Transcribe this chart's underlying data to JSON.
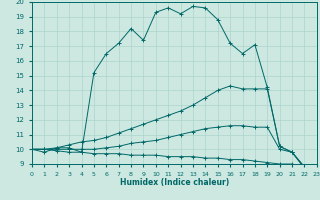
{
  "xlabel": "Humidex (Indice chaleur)",
  "xlim": [
    0,
    23
  ],
  "ylim": [
    9,
    20
  ],
  "xticks": [
    0,
    1,
    2,
    3,
    4,
    5,
    6,
    7,
    8,
    9,
    10,
    11,
    12,
    13,
    14,
    15,
    16,
    17,
    18,
    19,
    20,
    21,
    22,
    23
  ],
  "yticks": [
    9,
    10,
    11,
    12,
    13,
    14,
    15,
    16,
    17,
    18,
    19,
    20
  ],
  "bg_color": "#cce8e0",
  "grid_color": "#aad4cc",
  "line_color": "#006868",
  "series": [
    {
      "x": [
        0,
        1,
        2,
        3,
        4,
        5,
        6,
        7,
        8,
        9,
        10,
        11,
        12,
        13,
        14,
        15,
        16,
        17,
        18,
        19,
        20,
        21,
        22,
        23
      ],
      "y": [
        10.0,
        9.8,
        10.1,
        10.1,
        9.8,
        15.2,
        16.5,
        17.2,
        18.2,
        17.4,
        19.3,
        19.6,
        19.2,
        19.7,
        19.6,
        18.8,
        17.2,
        16.5,
        17.1,
        14.2,
        10.2,
        9.8,
        8.7,
        8.6
      ]
    },
    {
      "x": [
        0,
        1,
        2,
        3,
        4,
        5,
        6,
        7,
        8,
        9,
        10,
        11,
        12,
        13,
        14,
        15,
        16,
        17,
        18,
        19,
        20,
        21,
        22,
        23
      ],
      "y": [
        10.0,
        10.0,
        10.1,
        10.3,
        10.5,
        10.6,
        10.8,
        11.1,
        11.4,
        11.7,
        12.0,
        12.3,
        12.6,
        13.0,
        13.5,
        14.0,
        14.3,
        14.1,
        14.1,
        14.1,
        10.2,
        9.8,
        8.8,
        8.6
      ]
    },
    {
      "x": [
        0,
        1,
        2,
        3,
        4,
        5,
        6,
        7,
        8,
        9,
        10,
        11,
        12,
        13,
        14,
        15,
        16,
        17,
        18,
        19,
        20,
        21,
        22,
        23
      ],
      "y": [
        10.0,
        10.0,
        10.0,
        10.0,
        10.0,
        10.0,
        10.1,
        10.2,
        10.4,
        10.5,
        10.6,
        10.8,
        11.0,
        11.2,
        11.4,
        11.5,
        11.6,
        11.6,
        11.5,
        11.5,
        10.0,
        9.8,
        8.8,
        8.6
      ]
    },
    {
      "x": [
        0,
        1,
        2,
        3,
        4,
        5,
        6,
        7,
        8,
        9,
        10,
        11,
        12,
        13,
        14,
        15,
        16,
        17,
        18,
        19,
        20,
        21,
        22,
        23
      ],
      "y": [
        10.0,
        10.0,
        9.9,
        9.8,
        9.8,
        9.7,
        9.7,
        9.7,
        9.6,
        9.6,
        9.6,
        9.5,
        9.5,
        9.5,
        9.4,
        9.4,
        9.3,
        9.3,
        9.2,
        9.1,
        9.0,
        9.0,
        8.8,
        8.6
      ]
    }
  ]
}
